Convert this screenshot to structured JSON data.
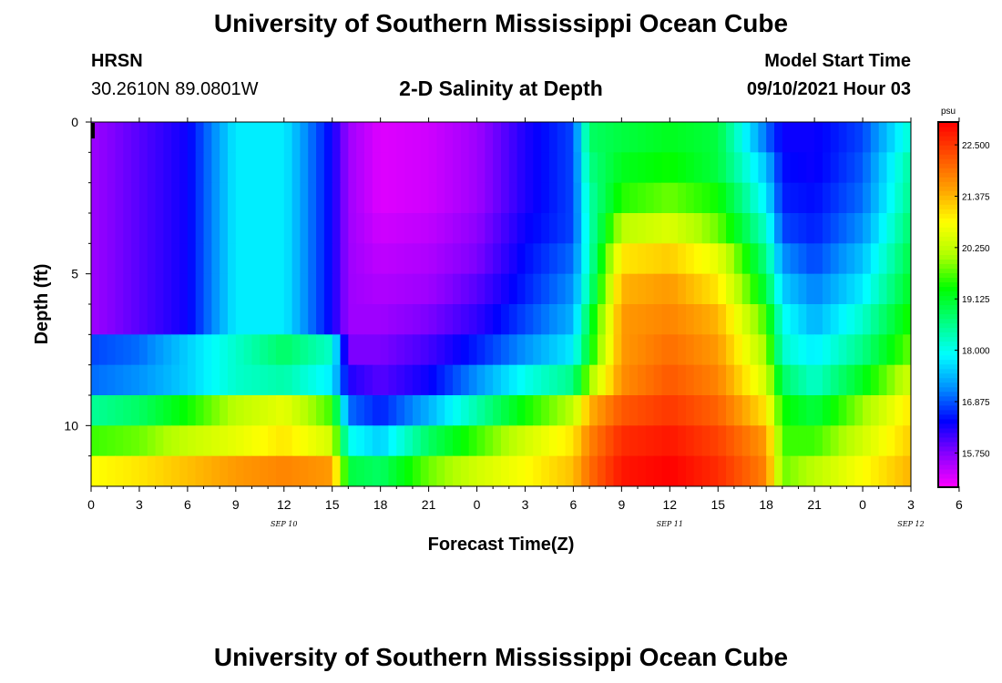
{
  "page": {
    "title_top": "University of Southern Mississippi Ocean Cube",
    "title_bottom": "University of Southern Mississippi Ocean Cube",
    "station": "HRSN",
    "coordinates": "30.2610N  89.0801W",
    "subtitle": "2-D Salinity at Depth",
    "model_start_label": "Model Start Time",
    "model_start_value": "09/10/2021 Hour 03"
  },
  "colors": {
    "palette": [
      "#ff00ff",
      "#8a00ff",
      "#0000ff",
      "#0090ff",
      "#00ffff",
      "#00ff80",
      "#00ff00",
      "#b0ff00",
      "#ffff00",
      "#ffa000",
      "#ff5000",
      "#ff0000"
    ]
  },
  "chart_data": {
    "type": "heatmap",
    "title": "2-D Salinity at Depth",
    "xlabel": "Forecast Time(Z)",
    "ylabel": "Depth (ft)",
    "x_range": [
      0,
      51
    ],
    "y_range": [
      0,
      12
    ],
    "x_tick_labels": [
      "0",
      "3",
      "6",
      "9",
      "12",
      "15",
      "18",
      "21",
      "0",
      "3",
      "6",
      "9",
      "12",
      "15",
      "18",
      "21",
      "0",
      "3",
      "6"
    ],
    "y_tick_labels": [
      "0",
      "5",
      "10"
    ],
    "y_tick_values": [
      0,
      5,
      10
    ],
    "date_labels": [
      {
        "text": "SEP 10",
        "x_hour": 12
      },
      {
        "text": "SEP 11",
        "x_hour": 36
      },
      {
        "text": "SEP 12",
        "x_hour": 51
      }
    ],
    "colorbar": {
      "unit": "psu",
      "min": 15.0,
      "max": 23.0,
      "tick_labels": [
        "22.500",
        "21.375",
        "20.250",
        "19.125",
        "18.000",
        "16.875",
        "15.750"
      ],
      "tick_values": [
        22.5,
        21.375,
        20.25,
        19.125,
        18.0,
        16.875,
        15.75
      ]
    },
    "times": [
      0,
      3,
      6,
      9,
      12,
      15,
      16,
      18,
      21,
      24,
      27,
      30,
      31,
      33,
      36,
      39,
      42,
      43,
      45,
      48,
      51
    ],
    "depths": [
      0.5,
      1.5,
      2.5,
      3.5,
      4.5,
      5.5,
      6.5,
      7.5,
      8.5,
      9.5,
      10.5,
      11.5
    ],
    "salinity": [
      [
        15.6,
        16.0,
        16.4,
        17.8,
        17.8,
        16.4,
        15.6,
        15.2,
        15.3,
        15.6,
        16.3,
        16.8,
        18.8,
        19.0,
        19.2,
        19.0,
        17.0,
        16.4,
        16.4,
        16.8,
        18.2
      ],
      [
        15.6,
        16.0,
        16.4,
        17.8,
        17.8,
        16.4,
        15.6,
        15.2,
        15.3,
        15.6,
        16.3,
        16.8,
        18.6,
        19.2,
        19.4,
        19.0,
        17.5,
        16.5,
        16.4,
        16.9,
        18.5
      ],
      [
        15.6,
        16.0,
        16.4,
        17.8,
        17.8,
        16.4,
        15.6,
        15.2,
        15.3,
        15.6,
        16.3,
        16.8,
        18.4,
        19.5,
        19.8,
        19.4,
        17.8,
        16.6,
        16.5,
        17.0,
        18.6
      ],
      [
        15.6,
        16.0,
        16.4,
        17.8,
        17.8,
        16.4,
        15.6,
        15.3,
        15.4,
        15.7,
        16.4,
        16.8,
        18.3,
        20.2,
        20.5,
        19.8,
        18.2,
        16.8,
        16.6,
        17.2,
        18.8
      ],
      [
        15.6,
        16.0,
        16.4,
        17.8,
        17.8,
        16.4,
        15.6,
        15.4,
        15.5,
        15.8,
        16.5,
        17.0,
        18.3,
        21.0,
        21.2,
        20.6,
        18.6,
        17.2,
        16.8,
        17.5,
        19.0
      ],
      [
        15.6,
        16.0,
        16.4,
        17.8,
        17.8,
        16.4,
        15.6,
        15.5,
        15.6,
        16.0,
        16.6,
        17.2,
        18.5,
        21.4,
        21.6,
        21.0,
        19.0,
        17.6,
        17.1,
        17.8,
        19.2
      ],
      [
        15.6,
        16.0,
        16.4,
        17.8,
        17.8,
        16.4,
        15.6,
        15.6,
        15.8,
        16.2,
        16.8,
        17.4,
        19.0,
        21.6,
        21.8,
        21.4,
        19.6,
        18.0,
        17.4,
        18.2,
        19.5
      ],
      [
        16.8,
        17.0,
        17.6,
        18.2,
        18.8,
        18.2,
        15.8,
        15.8,
        16.1,
        16.6,
        17.2,
        17.8,
        19.2,
        21.6,
        22.0,
        21.6,
        20.0,
        18.2,
        17.8,
        18.6,
        19.8
      ],
      [
        17.0,
        17.2,
        17.6,
        18.2,
        18.4,
        17.8,
        16.3,
        16.0,
        16.4,
        17.2,
        18.0,
        18.6,
        20.0,
        21.7,
        22.2,
        21.8,
        20.4,
        18.8,
        18.2,
        19.2,
        20.4
      ],
      [
        18.5,
        18.8,
        19.4,
        20.2,
        20.6,
        19.6,
        17.0,
        16.6,
        17.4,
        18.4,
        19.4,
        20.2,
        21.4,
        22.2,
        22.5,
        22.1,
        21.0,
        19.4,
        19.0,
        20.0,
        21.0
      ],
      [
        19.6,
        19.8,
        20.3,
        20.6,
        21.0,
        20.4,
        18.0,
        17.6,
        18.8,
        19.6,
        20.4,
        21.0,
        21.8,
        22.6,
        22.8,
        22.4,
        21.6,
        19.6,
        19.6,
        20.4,
        21.2
      ],
      [
        20.8,
        21.0,
        21.3,
        21.6,
        21.8,
        21.6,
        19.0,
        18.8,
        19.8,
        20.4,
        20.8,
        21.3,
        22.0,
        22.8,
        23.0,
        22.6,
        21.8,
        19.8,
        20.2,
        20.8,
        21.4
      ]
    ]
  }
}
